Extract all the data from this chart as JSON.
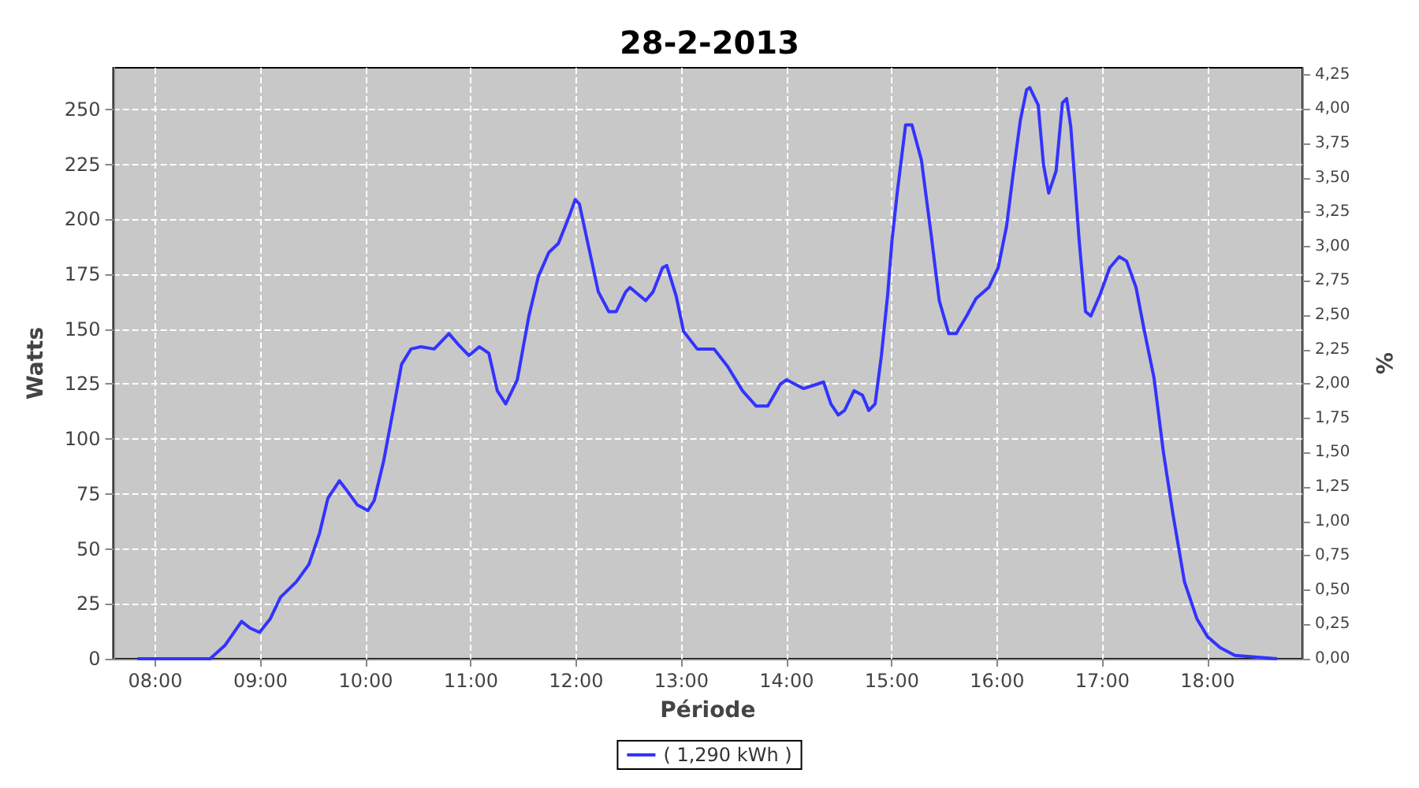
{
  "chart_data": {
    "type": "line",
    "title": "28-2-2013",
    "xlabel": "Période",
    "ylabel": "Watts",
    "y2label": "%",
    "xlim": [
      7.6,
      18.9
    ],
    "xticks": [
      {
        "value": 8,
        "label": "08:00"
      },
      {
        "value": 9,
        "label": "09:00"
      },
      {
        "value": 10,
        "label": "10:00"
      },
      {
        "value": 11,
        "label": "11:00"
      },
      {
        "value": 12,
        "label": "12:00"
      },
      {
        "value": 13,
        "label": "13:00"
      },
      {
        "value": 14,
        "label": "14:00"
      },
      {
        "value": 15,
        "label": "15:00"
      },
      {
        "value": 16,
        "label": "16:00"
      },
      {
        "value": 17,
        "label": "17:00"
      },
      {
        "value": 18,
        "label": "18:00"
      }
    ],
    "ylim": [
      0,
      269
    ],
    "yticks": [
      0,
      25,
      50,
      75,
      100,
      125,
      150,
      175,
      200,
      225,
      250
    ],
    "y2lim": [
      0,
      4.3
    ],
    "y2ticks": [
      {
        "value": 0,
        "label": "0,00"
      },
      {
        "value": 0.25,
        "label": "0,25"
      },
      {
        "value": 0.5,
        "label": "0,50"
      },
      {
        "value": 0.75,
        "label": "0,75"
      },
      {
        "value": 1,
        "label": "1,00"
      },
      {
        "value": 1.25,
        "label": "1,25"
      },
      {
        "value": 1.5,
        "label": "1,50"
      },
      {
        "value": 1.75,
        "label": "1,75"
      },
      {
        "value": 2,
        "label": "2,00"
      },
      {
        "value": 2.25,
        "label": "2,25"
      },
      {
        "value": 2.5,
        "label": "2,50"
      },
      {
        "value": 2.75,
        "label": "2,75"
      },
      {
        "value": 3,
        "label": "3,00"
      },
      {
        "value": 3.25,
        "label": "3,25"
      },
      {
        "value": 3.5,
        "label": "3,50"
      },
      {
        "value": 3.75,
        "label": "3,75"
      },
      {
        "value": 4,
        "label": "4,00"
      },
      {
        "value": 4.25,
        "label": "4,25"
      }
    ],
    "grid": true,
    "legend": "bottom",
    "marker": "none",
    "line_style": "solid",
    "series": [
      {
        "name": "( 1,290 kWh )",
        "color": "#3333ff",
        "x": [
          7.83,
          8.52,
          8.66,
          8.82,
          8.9,
          8.99,
          9.09,
          9.19,
          9.34,
          9.46,
          9.56,
          9.64,
          9.75,
          9.83,
          9.92,
          10.02,
          10.08,
          10.17,
          10.26,
          10.34,
          10.43,
          10.52,
          10.65,
          10.79,
          10.88,
          10.98,
          11.08,
          11.17,
          11.25,
          11.33,
          11.44,
          11.55,
          11.64,
          11.74,
          11.83,
          11.93,
          11.99,
          12.03,
          12.12,
          12.21,
          12.31,
          12.38,
          12.47,
          12.51,
          12.66,
          12.73,
          12.82,
          12.86,
          12.95,
          13.02,
          13.15,
          13.31,
          13.44,
          13.58,
          13.71,
          13.82,
          13.94,
          14.0,
          14.16,
          14.29,
          14.35,
          14.42,
          14.49,
          14.55,
          14.64,
          14.72,
          14.78,
          14.84,
          14.9,
          14.96,
          15.0,
          15.05,
          15.13,
          15.19,
          15.28,
          15.37,
          15.45,
          15.54,
          15.61,
          15.71,
          15.8,
          15.92,
          16.01,
          16.09,
          16.15,
          16.22,
          16.28,
          16.31,
          16.39,
          16.44,
          16.49,
          16.56,
          16.62,
          16.66,
          16.7,
          16.78,
          16.84,
          16.89,
          16.98,
          17.07,
          17.16,
          17.23,
          17.32,
          17.4,
          17.49,
          17.58,
          17.67,
          17.78,
          17.9,
          18.0,
          18.12,
          18.26,
          18.66
        ],
        "values": [
          0,
          0,
          6,
          17,
          14,
          12,
          18,
          28,
          35,
          43,
          57,
          73,
          81,
          76,
          70,
          67.5,
          72,
          90,
          113,
          134,
          141,
          142,
          141,
          148,
          143,
          138,
          142,
          139,
          122,
          116,
          127,
          156,
          174,
          185,
          189,
          201,
          209,
          207,
          187,
          167,
          158,
          158,
          167,
          169,
          163,
          167,
          178,
          179,
          165,
          149,
          141,
          141,
          133,
          122,
          115,
          115,
          125,
          127,
          123,
          125,
          126,
          116,
          111,
          113,
          122,
          120,
          113,
          116,
          138,
          166,
          190,
          212,
          243,
          243,
          227,
          194,
          163,
          148,
          148,
          156,
          164,
          169,
          178,
          197,
          220,
          245,
          259,
          260,
          252,
          225,
          212,
          222,
          253,
          255,
          242,
          190,
          158,
          156,
          166,
          178,
          183,
          181,
          169,
          149,
          128,
          94,
          66,
          35,
          18,
          10,
          5,
          1.5,
          0
        ]
      }
    ]
  }
}
